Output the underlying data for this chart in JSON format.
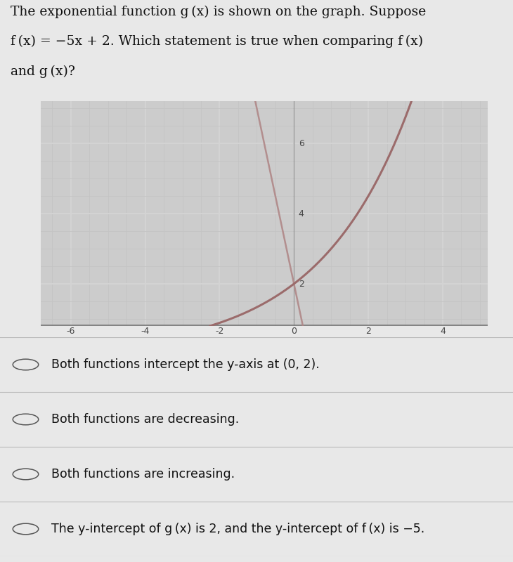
{
  "background_color": "#e8e8e8",
  "plot_bg_color": "#cccccc",
  "grid_major_color": "#bbbbbb",
  "grid_minor_color": "#c8c8c8",
  "grid_white": "#e0e0e0",
  "curve_color": "#9b6b6b",
  "linear_color": "#b08888",
  "axis_line_color": "#888888",
  "tick_label_color": "#444444",
  "x_min": -6.8,
  "x_max": 5.2,
  "y_min": 0.8,
  "y_max": 7.2,
  "x_ticks": [
    -6,
    -4,
    -2,
    0,
    2,
    4
  ],
  "y_ticks": [
    2,
    4,
    6
  ],
  "question_lines": [
    "The exponential function g (x) is shown on the graph. Suppose",
    "f (x) = −5x + 2. Which statement is true when comparing f (x)",
    "and g (x)?"
  ],
  "answer1": "Both functions intercept the y-axis at (0, 2).",
  "answer2": "Both functions are decreasing.",
  "answer3": "Both functions are increasing.",
  "answer4": "The y-intercept of g (x) is 2, and the y-intercept of f (x) is −5.",
  "fig_width": 7.3,
  "fig_height": 8.0,
  "dpi": 100
}
